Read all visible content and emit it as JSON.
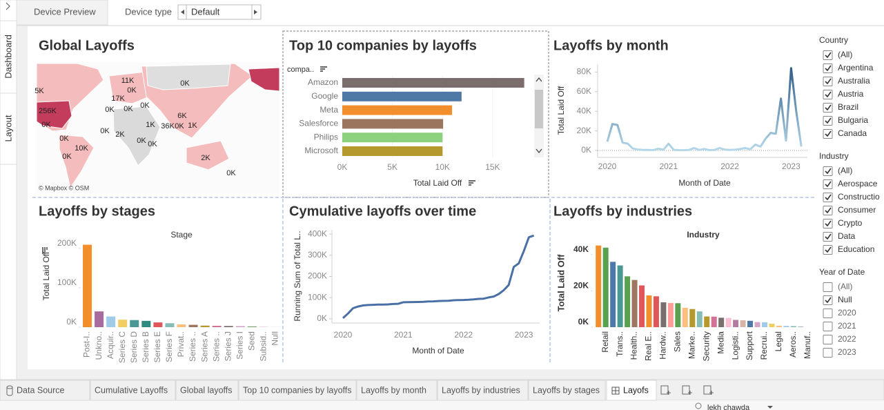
{
  "toolbar": {
    "device_preview": "Device Preview",
    "device_type_label": "Device type",
    "device_type": "Default"
  },
  "side_tabs": [
    "Dashboard",
    "Layout"
  ],
  "chart_data": [
    {
      "type": "map",
      "title": "Global Layoffs",
      "labels": [
        "5K",
        "256K",
        "0K",
        "11K",
        "0K",
        "0K",
        "17K",
        "0K",
        "0K",
        "0K",
        "6K",
        "1K",
        "36K",
        "0K",
        "1K",
        "0K",
        "2K",
        "0K",
        "0K",
        "10K",
        "0K",
        "0K",
        "2K",
        "0K"
      ],
      "attribution": "© Mapbox © OSM"
    },
    {
      "type": "hbar",
      "title": "Top 10 companies by layoffs",
      "category_header": "compa..",
      "categories": [
        "Amazon",
        "Google",
        "Meta",
        "Salesforce",
        "Philips",
        "Microsoft"
      ],
      "values": [
        18150,
        11900,
        10950,
        10060,
        10000,
        10000
      ],
      "colors": [
        "#7b6d6b",
        "#4e79a7",
        "#f28e2b",
        "#9c755f",
        "#8cd17d",
        "#b6992d"
      ],
      "xlim": [
        0,
        19000
      ],
      "xticks": [
        {
          "value": 0,
          "label": "0K"
        },
        {
          "value": 5000,
          "label": "5K"
        },
        {
          "value": 10000,
          "label": "10K"
        },
        {
          "value": 15000,
          "label": "15K"
        }
      ],
      "x_label": "Total Laid Off"
    },
    {
      "type": "line",
      "title": "Layoffs by month",
      "categories": [
        "2020",
        null,
        null,
        null,
        null,
        null,
        null,
        null,
        null,
        null,
        null,
        null,
        "2021",
        null,
        null,
        null,
        null,
        null,
        null,
        null,
        null,
        null,
        null,
        null,
        "2022",
        null,
        null,
        null,
        null,
        null,
        null,
        null,
        null,
        null,
        null,
        null,
        "2023",
        null,
        null
      ],
      "values": [
        9000,
        27000,
        26000,
        8000,
        7000,
        2000,
        1000,
        600,
        500,
        400,
        1800,
        800,
        6900,
        700,
        400,
        300,
        500,
        2500,
        500,
        1500,
        400,
        600,
        2500,
        900,
        500,
        800,
        1500,
        2500,
        1200,
        6000,
        4000,
        12000,
        18000,
        17000,
        53000,
        10000,
        84000,
        40000,
        4000
      ],
      "color_range": [
        "#b5d8ea",
        "#2a5783"
      ],
      "zero_line": true,
      "ylim": [
        -7000,
        88000
      ],
      "yticks": [
        {
          "value": 0,
          "label": "0K"
        },
        {
          "value": 20000,
          "label": "20K"
        },
        {
          "value": 40000,
          "label": "40K"
        },
        {
          "value": 60000,
          "label": "60K"
        },
        {
          "value": 80000,
          "label": "80K"
        }
      ],
      "x_label": "Month of Date",
      "y_label": "Total Laid Off"
    },
    {
      "type": "bar",
      "title": "Layoffs by stages",
      "category_header": "Stage",
      "categories": [
        "Post-I..",
        "Unkno..",
        "Acquir..",
        "Series C",
        "Series D",
        "Series B",
        "Series E",
        "Series F",
        "Privat..",
        "Series ..",
        "Series A",
        "Series ..",
        "Series J",
        "Series I",
        "Seed",
        "Subsid..",
        "Null"
      ],
      "values": [
        209000,
        40000,
        27000,
        19000,
        18000,
        16000,
        12000,
        10000,
        7000,
        6000,
        4000,
        3500,
        3000,
        2800,
        1600,
        1100,
        300
      ],
      "colors": [
        "#f28e2b",
        "#a86b9e",
        "#a0cbe8",
        "#f1ce63",
        "#499894",
        "#2e8b80",
        "#e15759",
        "#86bcb6",
        "#ffbe7d",
        "#9d7660",
        "#b6992d",
        "#d37295",
        "#79706e",
        "#d4a6c8",
        "#59a14f",
        "#fabfd2",
        "#bab0ac"
      ],
      "ylim": [
        0,
        217000
      ],
      "yticks": [
        {
          "value": 0,
          "label": "0K"
        },
        {
          "value": 100000,
          "label": "100K"
        },
        {
          "value": 200000,
          "label": "200K"
        }
      ],
      "y_label": "Total Laid Off"
    },
    {
      "type": "line",
      "title": "Cymulative layoffs over time",
      "categories": [
        "2020",
        null,
        null,
        null,
        null,
        null,
        null,
        null,
        null,
        null,
        null,
        null,
        "2021",
        null,
        null,
        null,
        null,
        null,
        null,
        null,
        null,
        null,
        null,
        null,
        "2022",
        null,
        null,
        null,
        null,
        null,
        null,
        null,
        null,
        null,
        null,
        null,
        "2023",
        null,
        null
      ],
      "values": [
        3000,
        25000,
        50000,
        58000,
        63000,
        65000,
        66000,
        67000,
        67500,
        68000,
        70000,
        71000,
        78000,
        78500,
        79000,
        79500,
        80000,
        82000,
        82500,
        84000,
        84500,
        85000,
        87500,
        88500,
        89000,
        90000,
        91500,
        94000,
        95000,
        101000,
        105000,
        117000,
        135000,
        160000,
        245000,
        262000,
        320000,
        385000,
        393000
      ],
      "color": "#4a6fa5",
      "ylim": [
        -20000,
        420000
      ],
      "yticks": [
        {
          "value": 0,
          "label": "0K"
        },
        {
          "value": 100000,
          "label": "100K"
        },
        {
          "value": 200000,
          "label": "200K"
        },
        {
          "value": 300000,
          "label": "300K"
        },
        {
          "value": 400000,
          "label": "400K"
        }
      ],
      "x_label": "Month of Date",
      "y_label": "Running Sum of Total L.."
    },
    {
      "type": "bar",
      "title": "Layoffs by industries",
      "category_header": "Industry",
      "categories": [
        null,
        "Retail",
        null,
        "Trans..",
        null,
        "Health..",
        null,
        "Real E..",
        null,
        "Hardw..",
        null,
        "Sales",
        null,
        "Marke..",
        null,
        "Security",
        null,
        "Media",
        null,
        "Logisti..",
        null,
        "Support",
        null,
        "Recrui..",
        null,
        "Legal",
        null,
        "Aeros..",
        null,
        "Manuf.."
      ],
      "values": [
        45000,
        43800,
        36000,
        34000,
        28000,
        26000,
        23000,
        17500,
        17000,
        13700,
        13300,
        13200,
        10700,
        10000,
        8700,
        5900,
        5800,
        5200,
        5100,
        4000,
        3800,
        3500,
        2800,
        2700,
        1900,
        800,
        700,
        600,
        200,
        20
      ],
      "colors": [
        "#f28e2b",
        "#59a14f",
        "#4e79a7",
        "#499894",
        "#59a14f",
        "#9d7660",
        "#e15759",
        "#f28e2b",
        "#e15759",
        "#79706e",
        "#ff9d9a",
        "#59a14f",
        "#ffbe7d",
        "#b6992d",
        "#86bcb6",
        "#b6992d",
        "#d37295",
        "#79706e",
        "#fabfd2",
        "#b07aa1",
        "#d7b5a6",
        "#4e79a7",
        "#d4a6c8",
        "#a0cbe8",
        "#f1ce63",
        "#ffbe7d",
        "#a0cbe8",
        "#86bcb6",
        "#4e79a7",
        "#bab0ac"
      ],
      "ylim": [
        0,
        46000
      ],
      "yticks": [
        {
          "value": 0,
          "label": "0K"
        },
        {
          "value": 20000,
          "label": "20K"
        },
        {
          "value": 40000,
          "label": "40K"
        }
      ],
      "y_label": "Total Laid Off",
      "bold_axis": true
    }
  ],
  "filters": [
    {
      "title": "Country",
      "items": [
        {
          "label": "(All)",
          "checked": true
        },
        {
          "label": "Argentina",
          "checked": true
        },
        {
          "label": "Australia",
          "checked": true
        },
        {
          "label": "Austria",
          "checked": true
        },
        {
          "label": "Brazil",
          "checked": true
        },
        {
          "label": "Bulgaria",
          "checked": true
        },
        {
          "label": "Canada",
          "checked": true
        }
      ]
    },
    {
      "title": "Industry",
      "items": [
        {
          "label": "(All)",
          "checked": true
        },
        {
          "label": "Aerospace",
          "checked": true
        },
        {
          "label": "Constructio",
          "checked": true
        },
        {
          "label": "Consumer",
          "checked": true
        },
        {
          "label": "Crypto",
          "checked": true
        },
        {
          "label": "Data",
          "checked": true
        },
        {
          "label": "Education",
          "checked": true
        }
      ]
    },
    {
      "title": "Year of Date",
      "items": [
        {
          "label": "(All)",
          "checked": false
        },
        {
          "label": "Null",
          "checked": true
        },
        {
          "label": "2020",
          "checked": false
        },
        {
          "label": "2021",
          "checked": false
        },
        {
          "label": "2022",
          "checked": false
        },
        {
          "label": "2023",
          "checked": false
        }
      ]
    }
  ],
  "sheet_tabs": [
    {
      "label": "Data Source",
      "active": false
    },
    {
      "label": "Cumulative Layoffs",
      "active": false
    },
    {
      "label": "Global layoffs",
      "active": false
    },
    {
      "label": "Top 10 companies by layoffs",
      "active": false
    },
    {
      "label": "Layoffs by month",
      "active": false
    },
    {
      "label": "Layoffs by industries",
      "active": false
    },
    {
      "label": "Layoffs by stages",
      "active": false
    },
    {
      "label": "Layofs",
      "active": true
    }
  ],
  "user": "lekh chawda"
}
